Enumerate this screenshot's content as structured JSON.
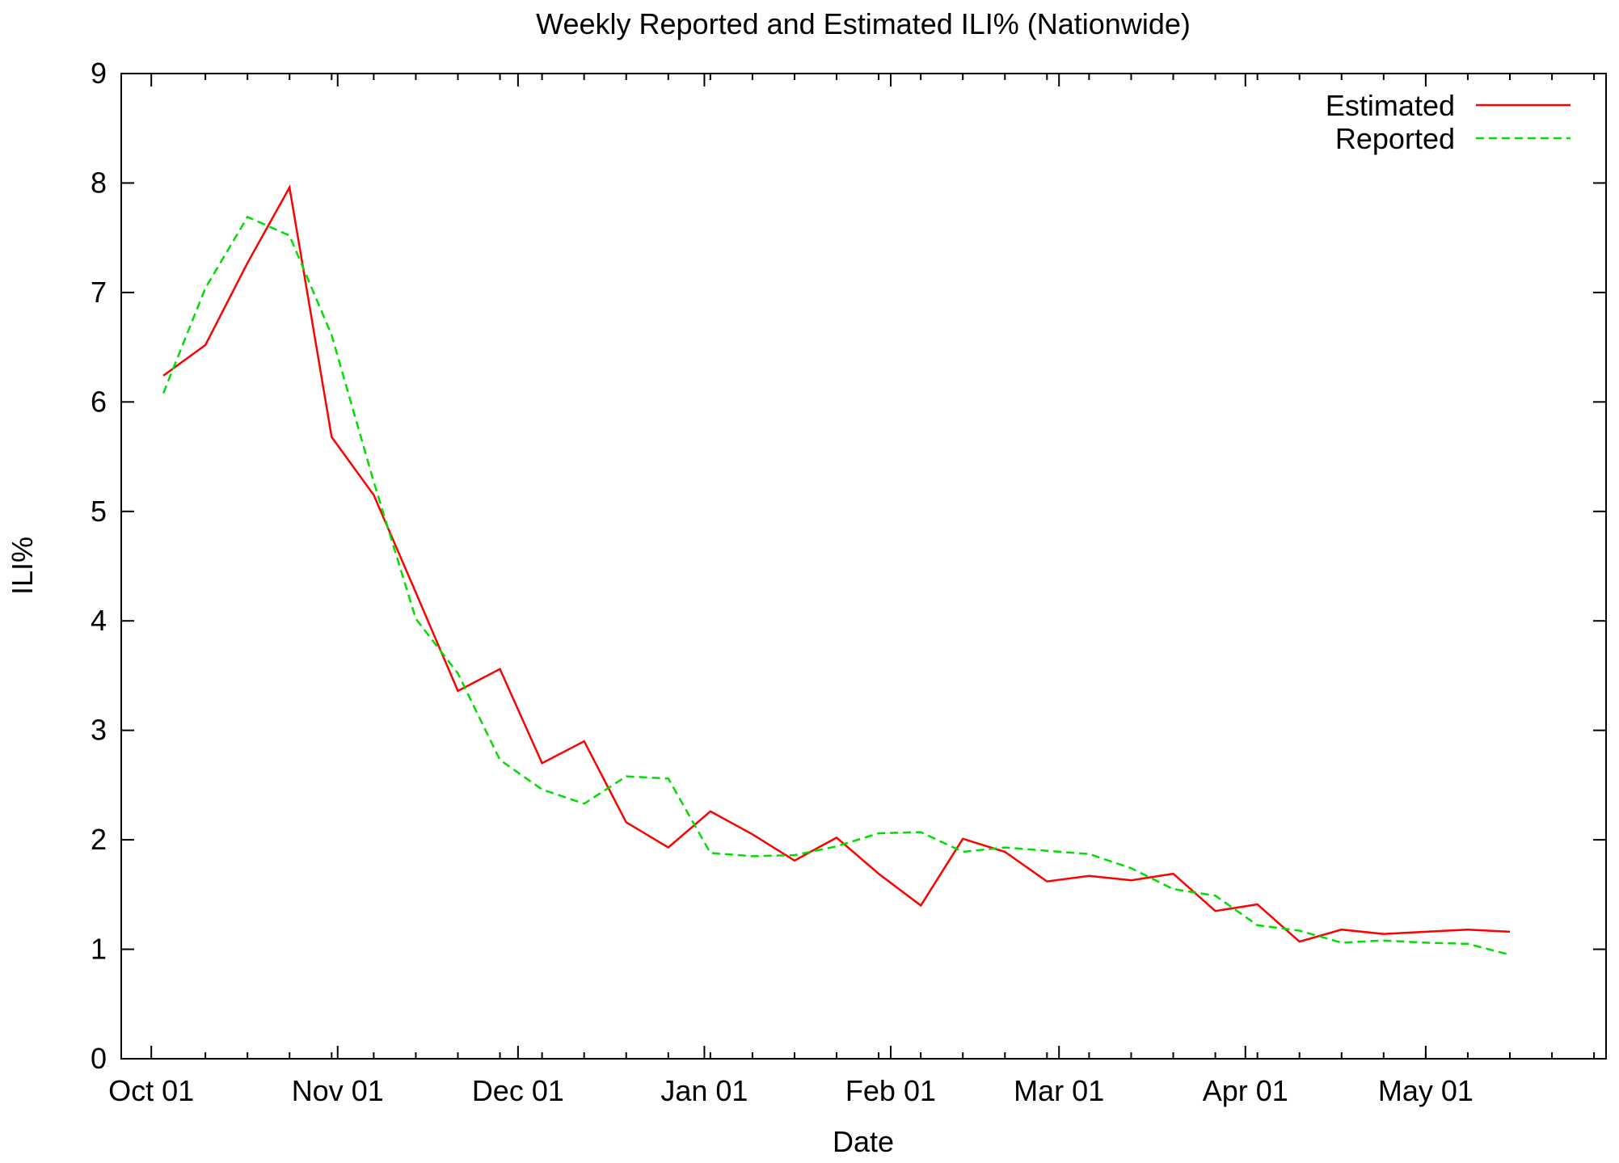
{
  "chart_data": {
    "type": "line",
    "title": "Weekly Reported and Estimated ILI% (Nationwide)",
    "xlabel": "Date",
    "ylabel": "ILI%",
    "ylim": [
      0,
      9
    ],
    "yticks": [
      "0",
      "1",
      "2",
      "3",
      "4",
      "5",
      "6",
      "7",
      "8",
      "9"
    ],
    "xlim": [
      "2009-09-26",
      "2010-05-31"
    ],
    "xticks": [
      {
        "date": "2009-10-01",
        "label": "Oct 01"
      },
      {
        "date": "2009-11-01",
        "label": "Nov 01"
      },
      {
        "date": "2009-12-01",
        "label": "Dec 01"
      },
      {
        "date": "2010-01-01",
        "label": "Jan 01"
      },
      {
        "date": "2010-02-01",
        "label": "Feb 01"
      },
      {
        "date": "2010-03-01",
        "label": "Mar 01"
      },
      {
        "date": "2010-04-01",
        "label": "Apr 01"
      },
      {
        "date": "2010-05-01",
        "label": "May 01"
      }
    ],
    "legend_position": "top-right",
    "grid": false,
    "series": [
      {
        "name": "Estimated",
        "color": "#ff0000",
        "dash": "solid",
        "points": [
          [
            "2009-10-03",
            6.24
          ],
          [
            "2009-10-10",
            6.52
          ],
          [
            "2009-10-17",
            7.27
          ],
          [
            "2009-10-24",
            7.96
          ],
          [
            "2009-10-31",
            5.68
          ],
          [
            "2009-11-07",
            5.15
          ],
          [
            "2009-11-14",
            4.26
          ],
          [
            "2009-11-21",
            3.36
          ],
          [
            "2009-11-28",
            3.56
          ],
          [
            "2009-12-05",
            2.7
          ],
          [
            "2009-12-12",
            2.9
          ],
          [
            "2009-12-19",
            2.16
          ],
          [
            "2009-12-26",
            1.93
          ],
          [
            "2010-01-02",
            2.26
          ],
          [
            "2010-01-09",
            2.05
          ],
          [
            "2010-01-16",
            1.81
          ],
          [
            "2010-01-23",
            2.02
          ],
          [
            "2010-01-30",
            1.69
          ],
          [
            "2010-02-06",
            1.4
          ],
          [
            "2010-02-13",
            2.01
          ],
          [
            "2010-02-20",
            1.89
          ],
          [
            "2010-02-27",
            1.62
          ],
          [
            "2010-03-06",
            1.67
          ],
          [
            "2010-03-13",
            1.63
          ],
          [
            "2010-03-20",
            1.69
          ],
          [
            "2010-03-27",
            1.35
          ],
          [
            "2010-04-03",
            1.41
          ],
          [
            "2010-04-10",
            1.07
          ],
          [
            "2010-04-17",
            1.18
          ],
          [
            "2010-04-24",
            1.14
          ],
          [
            "2010-05-01",
            1.16
          ],
          [
            "2010-05-08",
            1.18
          ],
          [
            "2010-05-15",
            1.16
          ]
        ]
      },
      {
        "name": "Reported",
        "color": "#00dd00",
        "dash": "dashed",
        "points": [
          [
            "2009-10-03",
            6.08
          ],
          [
            "2009-10-10",
            7.04
          ],
          [
            "2009-10-17",
            7.69
          ],
          [
            "2009-10-24",
            7.52
          ],
          [
            "2009-10-31",
            6.61
          ],
          [
            "2009-11-07",
            5.27
          ],
          [
            "2009-11-14",
            4.02
          ],
          [
            "2009-11-21",
            3.52
          ],
          [
            "2009-11-28",
            2.73
          ],
          [
            "2009-12-05",
            2.46
          ],
          [
            "2009-12-12",
            2.33
          ],
          [
            "2009-12-19",
            2.58
          ],
          [
            "2009-12-26",
            2.56
          ],
          [
            "2010-01-02",
            1.88
          ],
          [
            "2010-01-09",
            1.85
          ],
          [
            "2010-01-16",
            1.86
          ],
          [
            "2010-01-23",
            1.94
          ],
          [
            "2010-01-30",
            2.06
          ],
          [
            "2010-02-06",
            2.07
          ],
          [
            "2010-02-13",
            1.89
          ],
          [
            "2010-02-20",
            1.93
          ],
          [
            "2010-02-27",
            1.9
          ],
          [
            "2010-03-06",
            1.87
          ],
          [
            "2010-03-13",
            1.74
          ],
          [
            "2010-03-20",
            1.55
          ],
          [
            "2010-03-27",
            1.49
          ],
          [
            "2010-04-03",
            1.22
          ],
          [
            "2010-04-10",
            1.17
          ],
          [
            "2010-04-17",
            1.06
          ],
          [
            "2010-04-24",
            1.08
          ],
          [
            "2010-05-01",
            1.06
          ],
          [
            "2010-05-08",
            1.05
          ],
          [
            "2010-05-15",
            0.95
          ]
        ]
      }
    ]
  }
}
